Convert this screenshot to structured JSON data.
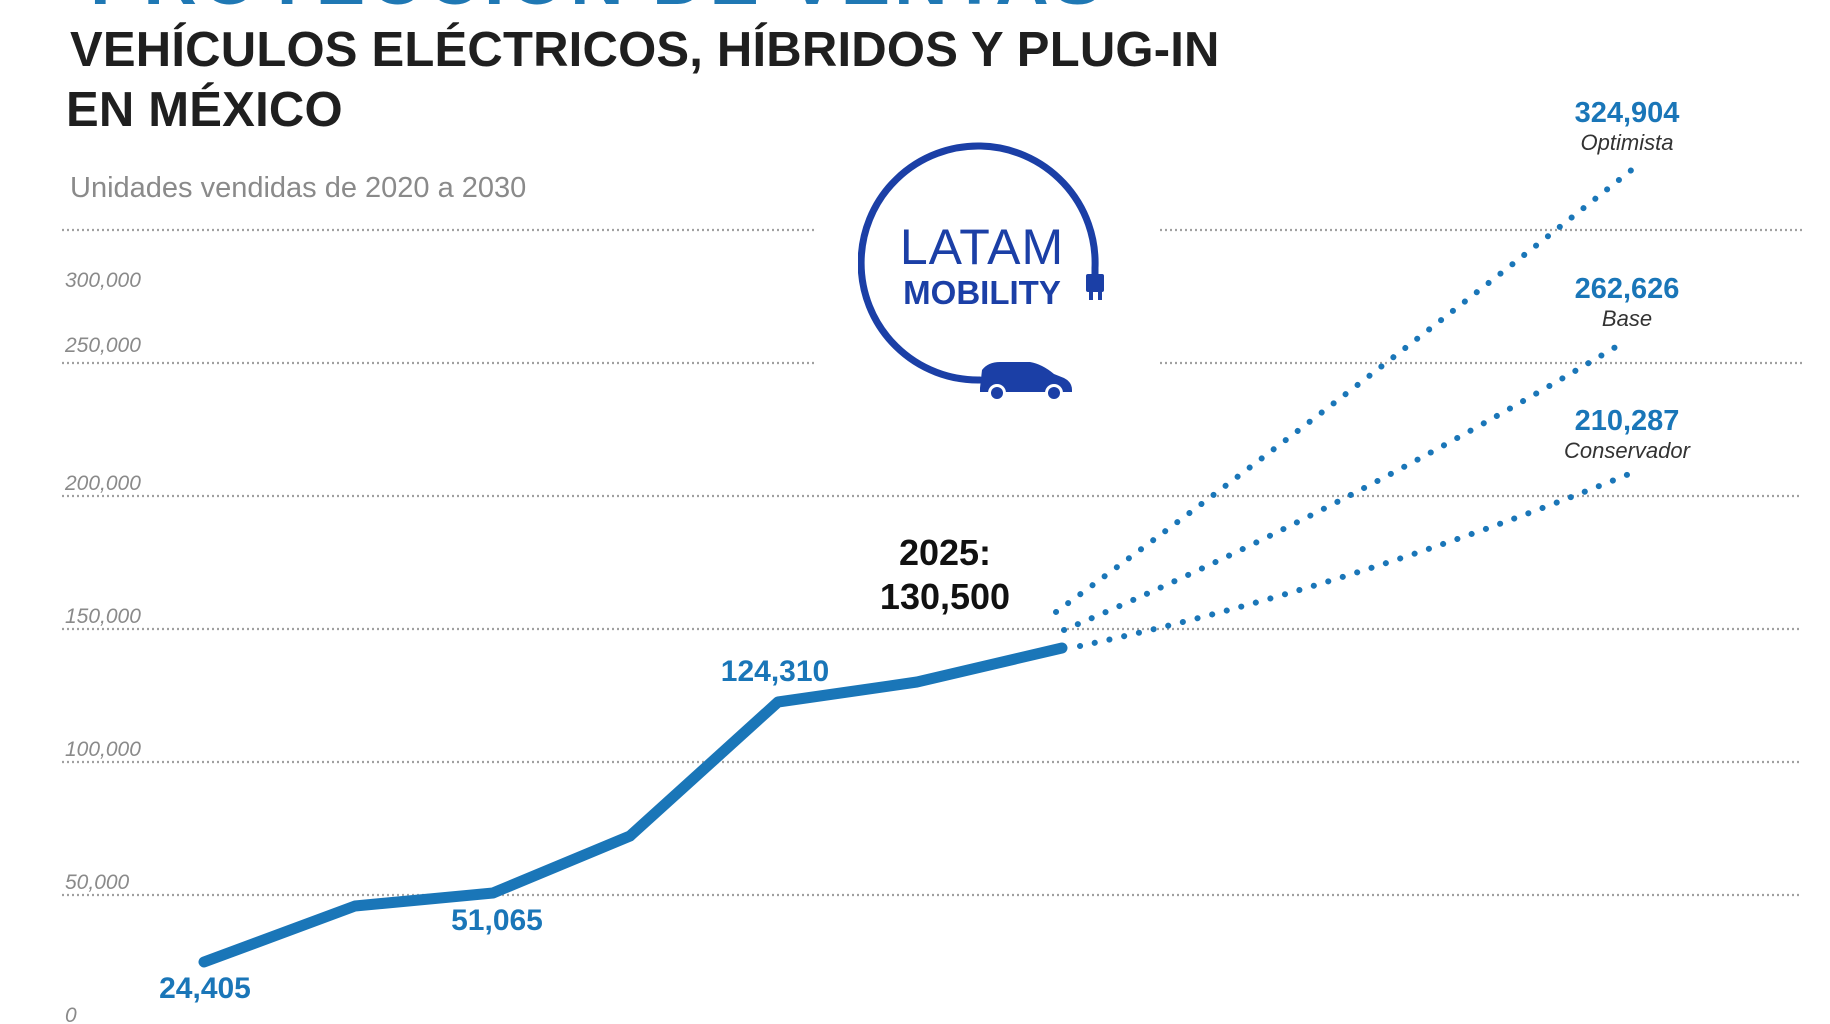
{
  "header": {
    "title_cut": "PROYECCIÓN DE VENTAS",
    "title_line1": "VEHÍCULOS ELÉCTRICOS, HÍBRIDOS Y PLUG-IN",
    "title_line2": "EN MÉXICO",
    "subtitle": "Unidades vendidas de 2020 a 2030"
  },
  "logo": {
    "line1": "LATAM",
    "line2": "MOBILITY",
    "icons": [
      "plug-icon",
      "car-icon"
    ]
  },
  "colors": {
    "series": "#1a76b8",
    "title": "#1f1f1f",
    "subtitle": "#8a8a8a",
    "grid": "#a0a0a0",
    "logo": "#1b3fa6"
  },
  "chart_data": {
    "type": "line",
    "x": [
      2020,
      2021,
      2022,
      2023,
      2024,
      2025
    ],
    "xlim": [
      2020,
      2030
    ],
    "ylim": [
      0,
      340000
    ],
    "yticks": [
      0,
      50000,
      100000,
      150000,
      200000,
      250000,
      300000
    ],
    "ytick_labels": [
      "0",
      "50,000",
      "100,000",
      "150,000",
      "200,000",
      "250,000",
      "300,000"
    ],
    "grid": true,
    "series": [
      {
        "style": "solid",
        "x": [
          2020,
          2021,
          2022,
          2023,
          2024,
          2025,
          2026,
          2027
        ],
        "values": [
          24405,
          43000,
          51065,
          76000,
          124310,
          130500,
          137000,
          143000
        ]
      }
    ],
    "projections": [
      {
        "name": "Optimista",
        "value_label": "324,904",
        "x": [
          2027,
          2031
        ],
        "values": [
          143000,
          324904
        ]
      },
      {
        "name": "Base",
        "value_label": "262,626",
        "x": [
          2027,
          2031
        ],
        "values": [
          143000,
          262626
        ]
      },
      {
        "name": "Conservador",
        "value_label": "210,287",
        "x": [
          2027,
          2031
        ],
        "values": [
          143000,
          210287
        ]
      }
    ],
    "point_labels": [
      {
        "text": "24,405",
        "x": 2020,
        "y": 24405
      },
      {
        "text": "51,065",
        "x": 2022,
        "y": 51065
      },
      {
        "text": "124,310",
        "x": 2024,
        "y": 124310
      }
    ],
    "highlight": {
      "year_label": "2025:",
      "value_label": "130,500"
    }
  }
}
